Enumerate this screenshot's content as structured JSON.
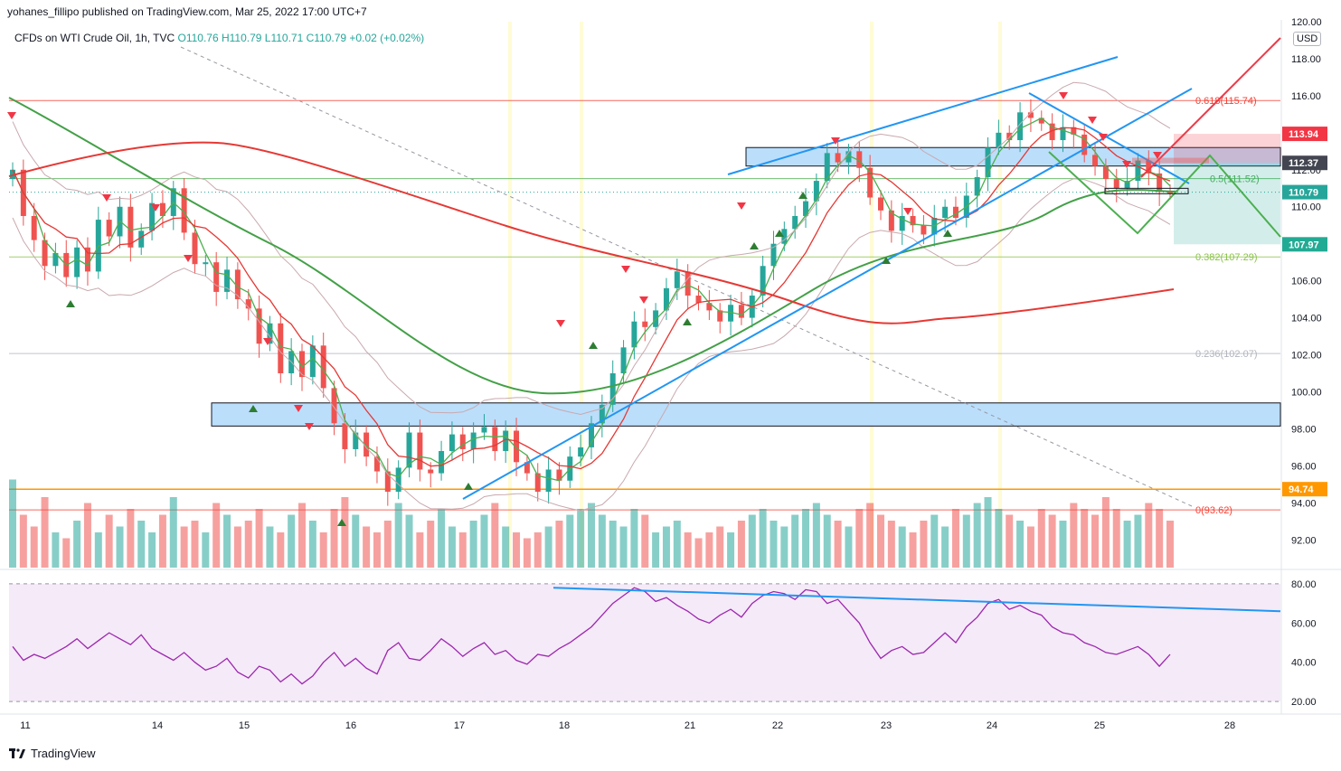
{
  "header": {
    "publisher": "yohanes_fillipo published on TradingView.com, Mar 25, 2022 17:00 UTC+7",
    "symbol": "CFDs on WTI Crude Oil, 1h, TVC",
    "ohlc": "O110.76  H110.79  L110.71  C110.79  +0.02 (+0.02%)",
    "currency": "USD"
  },
  "footer": {
    "brand": "TradingView"
  },
  "colors": {
    "up": "#26a69a",
    "down": "#ef5350",
    "sma_short": "#4caf50",
    "sma_red": "#e53935",
    "sma_green_long": "#43a047",
    "bollinger": "#c9a9ae",
    "zone_fill": "#bbdefb",
    "trendline": "#2196f3",
    "rsi_line": "#9c27b0",
    "rsi_band": "#f3e5f5"
  },
  "chart_data": {
    "type": "candlestick",
    "y_axis": {
      "range": [
        90.5,
        120.0
      ],
      "ticks": [
        "120.00",
        "118.00",
        "116.00",
        "114.00",
        "112.00",
        "110.00",
        "108.00",
        "106.00",
        "104.00",
        "102.00",
        "100.00",
        "98.00",
        "96.00",
        "94.00",
        "92.00"
      ]
    },
    "x_axis": {
      "ticks": [
        "11",
        "14",
        "15",
        "16",
        "17",
        "18",
        "21",
        "22",
        "23",
        "24",
        "25",
        "28"
      ]
    },
    "price_labels": [
      {
        "value": "113.94",
        "color": "#f23645"
      },
      {
        "value": "112.37",
        "color": "#434651"
      },
      {
        "value": "110.79",
        "color": "#26a69a"
      },
      {
        "value": "107.97",
        "color": "#22ab94"
      },
      {
        "value": "94.74",
        "color": "#ff9800"
      }
    ],
    "fibonacci": [
      {
        "label": "0.618(115.74)",
        "price": 115.74,
        "color": "#f44336"
      },
      {
        "label": "0.5(111.52)",
        "price": 111.52,
        "color": "#4caf50"
      },
      {
        "label": "0.382(107.29)",
        "price": 107.29,
        "color": "#8bc34a"
      },
      {
        "label": "0.236(102.07)",
        "price": 102.07,
        "color": "#b2b5be"
      },
      {
        "label": "0(93.62)",
        "price": 93.62,
        "color": "#f44336"
      }
    ],
    "horizontal_lines": [
      {
        "price": 94.74,
        "color": "#ff9800"
      },
      {
        "price": 111.52,
        "color": "#4caf50"
      }
    ],
    "zones": [
      {
        "from": 98.15,
        "to": 99.4
      },
      {
        "from": 112.2,
        "to": 113.2
      }
    ],
    "close_series": [
      112.0,
      109.5,
      108.2,
      106.8,
      107.5,
      106.2,
      107.8,
      106.5,
      109.3,
      108.4,
      110.0,
      107.8,
      108.7,
      110.2,
      109.5,
      111.0,
      108.6,
      106.9,
      107.0,
      105.4,
      106.6,
      105.0,
      104.5,
      102.6,
      103.7,
      101.0,
      102.2,
      100.8,
      102.5,
      100.2,
      98.3,
      96.9,
      97.8,
      96.5,
      95.7,
      94.6,
      95.9,
      97.8,
      95.8,
      95.6,
      96.8,
      97.7,
      96.9,
      97.8,
      98.1,
      96.8,
      97.9,
      96.2,
      95.6,
      94.6,
      95.8,
      95.2,
      96.5,
      97.0,
      98.3,
      99.3,
      101.0,
      102.4,
      103.8,
      103.5,
      104.4,
      105.6,
      106.5,
      105.2,
      104.8,
      104.4,
      103.8,
      104.7,
      104.0,
      105.2,
      106.8,
      108.0,
      108.8,
      109.5,
      110.3,
      111.4,
      112.9,
      112.4,
      113.0,
      112.1,
      110.5,
      109.8,
      108.7,
      109.5,
      109.0,
      108.5,
      109.4,
      110.0,
      109.4,
      110.6,
      111.6,
      113.2,
      114.0,
      113.6,
      115.1,
      114.8,
      114.5,
      113.6,
      114.3,
      113.9,
      112.8,
      112.2,
      111.5,
      111.0,
      111.4,
      112.5,
      111.8,
      110.8,
      110.79
    ],
    "volume_relative": [
      0.75,
      0.45,
      0.35,
      0.6,
      0.3,
      0.25,
      0.4,
      0.55,
      0.3,
      0.45,
      0.35,
      0.5,
      0.4,
      0.3,
      0.45,
      0.6,
      0.35,
      0.4,
      0.3,
      0.55,
      0.45,
      0.35,
      0.4,
      0.5,
      0.35,
      0.3,
      0.45,
      0.55,
      0.4,
      0.3,
      0.5,
      0.6,
      0.45,
      0.35,
      0.3,
      0.4,
      0.55,
      0.45,
      0.3,
      0.4,
      0.5,
      0.35,
      0.3,
      0.4,
      0.45,
      0.55,
      0.35,
      0.3,
      0.25,
      0.3,
      0.35,
      0.4,
      0.45,
      0.5,
      0.55,
      0.45,
      0.4,
      0.35,
      0.5,
      0.45,
      0.3,
      0.35,
      0.4,
      0.3,
      0.25,
      0.3,
      0.35,
      0.3,
      0.4,
      0.45,
      0.5,
      0.4,
      0.35,
      0.45,
      0.5,
      0.55,
      0.45,
      0.4,
      0.35,
      0.5,
      0.55,
      0.45,
      0.4,
      0.35,
      0.3,
      0.4,
      0.45,
      0.35,
      0.5,
      0.45,
      0.55,
      0.6,
      0.5,
      0.45,
      0.4,
      0.35,
      0.5,
      0.45,
      0.4,
      0.55,
      0.5,
      0.45,
      0.6,
      0.5,
      0.4,
      0.45,
      0.55,
      0.5,
      0.4
    ],
    "rsi": {
      "ticks": [
        "80.00",
        "60.00",
        "40.00",
        "20.00"
      ],
      "range": [
        15,
        85
      ],
      "levels": [
        80,
        20
      ],
      "values": [
        48,
        41,
        44,
        42,
        45,
        48,
        52,
        47,
        51,
        55,
        52,
        49,
        54,
        47,
        44,
        41,
        45,
        40,
        36,
        38,
        42,
        35,
        32,
        38,
        36,
        30,
        34,
        29,
        33,
        40,
        45,
        38,
        42,
        37,
        34,
        46,
        50,
        42,
        41,
        46,
        52,
        48,
        43,
        47,
        50,
        44,
        46,
        41,
        39,
        44,
        43,
        47,
        50,
        54,
        58,
        64,
        70,
        74,
        78,
        76,
        71,
        73,
        69,
        66,
        62,
        60,
        64,
        67,
        63,
        70,
        74,
        76,
        75,
        72,
        77,
        76,
        70,
        72,
        66,
        60,
        50,
        42,
        46,
        48,
        44,
        45,
        50,
        55,
        50,
        58,
        63,
        70,
        72,
        67,
        69,
        66,
        64,
        58,
        55,
        54,
        50,
        48,
        45,
        44,
        46,
        48,
        44,
        38,
        44
      ]
    }
  }
}
